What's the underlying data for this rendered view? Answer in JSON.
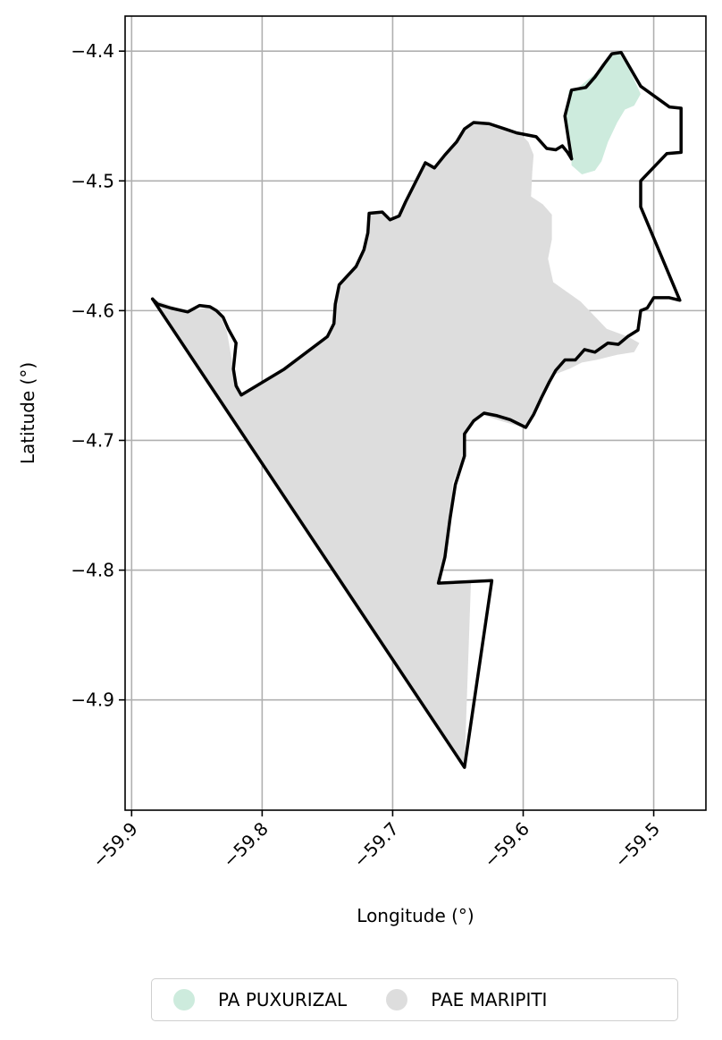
{
  "map": {
    "xlabel": "Longitude (°)",
    "ylabel": "Latitude (°)",
    "xlim": [
      -59.905,
      -59.46
    ],
    "ylim": [
      -4.985,
      -4.373
    ],
    "x_ticks": [
      -59.9,
      -59.8,
      -59.7,
      -59.6,
      -59.5
    ],
    "y_ticks": [
      -4.4,
      -4.5,
      -4.6,
      -4.7,
      -4.8,
      -4.9
    ],
    "x_tick_labels": [
      "−59.9",
      "−59.8",
      "−59.7",
      "−59.6",
      "−59.5"
    ],
    "y_tick_labels": [
      "−4.4",
      "−4.5",
      "−4.6",
      "−4.7",
      "−4.8",
      "−4.9"
    ],
    "grid": true,
    "legend_position": "bottom-center",
    "boundary_color": "#000000"
  },
  "legend": [
    {
      "label": "PA PUXURIZAL",
      "color": "#cdebdd"
    },
    {
      "label": "PAE MARIPITI",
      "color": "#dddddd"
    }
  ],
  "regions": [
    {
      "name": "PAE MARIPITI",
      "color": "#dddddd",
      "coords": [
        [
          -59.884,
          -4.591
        ],
        [
          -59.857,
          -4.601
        ],
        [
          -59.84,
          -4.597
        ],
        [
          -59.832,
          -4.604
        ],
        [
          -59.827,
          -4.616
        ],
        [
          -59.822,
          -4.645
        ],
        [
          -59.816,
          -4.665
        ],
        [
          -59.783,
          -4.645
        ],
        [
          -59.75,
          -4.62
        ],
        [
          -59.745,
          -4.61
        ],
        [
          -59.744,
          -4.595
        ],
        [
          -59.741,
          -4.58
        ],
        [
          -59.728,
          -4.566
        ],
        [
          -59.722,
          -4.553
        ],
        [
          -59.719,
          -4.54
        ],
        [
          -59.718,
          -4.525
        ],
        [
          -59.708,
          -4.524
        ],
        [
          -59.702,
          -4.53
        ],
        [
          -59.695,
          -4.527
        ],
        [
          -59.69,
          -4.516
        ],
        [
          -59.675,
          -4.486
        ],
        [
          -59.668,
          -4.49
        ],
        [
          -59.66,
          -4.48
        ],
        [
          -59.651,
          -4.47
        ],
        [
          -59.645,
          -4.46
        ],
        [
          -59.638,
          -4.455
        ],
        [
          -59.626,
          -4.456
        ],
        [
          -59.614,
          -4.46
        ],
        [
          -59.6,
          -4.466
        ],
        [
          -59.596,
          -4.47
        ],
        [
          -59.592,
          -4.48
        ],
        [
          -59.593,
          -4.493
        ],
        [
          -59.594,
          -4.512
        ],
        [
          -59.585,
          -4.518
        ],
        [
          -59.578,
          -4.526
        ],
        [
          -59.578,
          -4.545
        ],
        [
          -59.581,
          -4.56
        ],
        [
          -59.577,
          -4.578
        ],
        [
          -59.556,
          -4.593
        ],
        [
          -59.536,
          -4.614
        ],
        [
          -59.52,
          -4.62
        ],
        [
          -59.511,
          -4.625
        ],
        [
          -59.515,
          -4.632
        ],
        [
          -59.528,
          -4.634
        ],
        [
          -59.544,
          -4.638
        ],
        [
          -59.555,
          -4.64
        ],
        [
          -59.565,
          -4.645
        ],
        [
          -59.578,
          -4.65
        ],
        [
          -59.585,
          -4.663
        ],
        [
          -59.592,
          -4.68
        ],
        [
          -59.6,
          -4.69
        ],
        [
          -59.617,
          -4.685
        ],
        [
          -59.632,
          -4.68
        ],
        [
          -59.643,
          -4.692
        ],
        [
          -59.645,
          -4.71
        ],
        [
          -59.654,
          -4.733
        ],
        [
          -59.655,
          -4.758
        ],
        [
          -59.66,
          -4.79
        ],
        [
          -59.665,
          -4.81
        ],
        [
          -59.64,
          -4.808
        ],
        [
          -59.645,
          -4.952
        ],
        [
          -59.884,
          -4.591
        ]
      ]
    },
    {
      "name": "PA PUXURIZAL",
      "color": "#cdebdd",
      "coords": [
        [
          -59.563,
          -4.474
        ],
        [
          -59.567,
          -4.45
        ],
        [
          -59.565,
          -4.43
        ],
        [
          -59.56,
          -4.43
        ],
        [
          -59.542,
          -4.415
        ],
        [
          -59.535,
          -4.405
        ],
        [
          -59.527,
          -4.401
        ],
        [
          -59.52,
          -4.412
        ],
        [
          -59.515,
          -4.422
        ],
        [
          -59.51,
          -4.433
        ],
        [
          -59.515,
          -4.442
        ],
        [
          -59.522,
          -4.445
        ],
        [
          -59.528,
          -4.455
        ],
        [
          -59.535,
          -4.47
        ],
        [
          -59.54,
          -4.485
        ],
        [
          -59.545,
          -4.492
        ],
        [
          -59.555,
          -4.495
        ],
        [
          -59.563,
          -4.488
        ],
        [
          -59.563,
          -4.474
        ]
      ]
    }
  ],
  "boundaries": [
    {
      "name": "maripiti-outline",
      "coords": [
        [
          -59.884,
          -4.591
        ],
        [
          -59.88,
          -4.595
        ],
        [
          -59.87,
          -4.598
        ],
        [
          -59.857,
          -4.601
        ],
        [
          -59.848,
          -4.596
        ],
        [
          -59.84,
          -4.597
        ],
        [
          -59.835,
          -4.6
        ],
        [
          -59.83,
          -4.605
        ],
        [
          -59.826,
          -4.614
        ],
        [
          -59.82,
          -4.625
        ],
        [
          -59.822,
          -4.645
        ],
        [
          -59.82,
          -4.658
        ],
        [
          -59.816,
          -4.665
        ],
        [
          -59.783,
          -4.645
        ],
        [
          -59.75,
          -4.62
        ],
        [
          -59.745,
          -4.61
        ],
        [
          -59.744,
          -4.595
        ],
        [
          -59.741,
          -4.58
        ],
        [
          -59.728,
          -4.566
        ],
        [
          -59.722,
          -4.553
        ],
        [
          -59.719,
          -4.54
        ],
        [
          -59.718,
          -4.525
        ],
        [
          -59.708,
          -4.524
        ],
        [
          -59.702,
          -4.53
        ],
        [
          -59.695,
          -4.527
        ],
        [
          -59.69,
          -4.516
        ],
        [
          -59.675,
          -4.486
        ],
        [
          -59.668,
          -4.49
        ],
        [
          -59.66,
          -4.48
        ],
        [
          -59.651,
          -4.47
        ],
        [
          -59.645,
          -4.46
        ],
        [
          -59.638,
          -4.455
        ],
        [
          -59.626,
          -4.456
        ],
        [
          -59.614,
          -4.46
        ],
        [
          -59.605,
          -4.463
        ],
        [
          -59.59,
          -4.466
        ],
        [
          -59.582,
          -4.475
        ],
        [
          -59.575,
          -4.476
        ],
        [
          -59.57,
          -4.473
        ],
        [
          -59.566,
          -4.478
        ],
        [
          -59.563,
          -4.483
        ]
      ]
    },
    {
      "name": "puxurizal-outline",
      "coords": [
        [
          -59.563,
          -4.483
        ],
        [
          -59.568,
          -4.45
        ],
        [
          -59.563,
          -4.43
        ],
        [
          -59.552,
          -4.428
        ],
        [
          -59.545,
          -4.42
        ],
        [
          -59.538,
          -4.41
        ],
        [
          -59.532,
          -4.402
        ],
        [
          -59.525,
          -4.401
        ],
        [
          -59.51,
          -4.427
        ],
        [
          -59.488,
          -4.443
        ],
        [
          -59.479,
          -4.444
        ],
        [
          -59.479,
          -4.478
        ],
        [
          -59.49,
          -4.479
        ],
        [
          -59.51,
          -4.5
        ],
        [
          -59.51,
          -4.52
        ],
        [
          -59.48,
          -4.592
        ],
        [
          -59.488,
          -4.59
        ],
        [
          -59.5,
          -4.59
        ],
        [
          -59.505,
          -4.598
        ],
        [
          -59.51,
          -4.6
        ],
        [
          -59.512,
          -4.615
        ],
        [
          -59.52,
          -4.62
        ],
        [
          -59.527,
          -4.626
        ],
        [
          -59.535,
          -4.625
        ],
        [
          -59.545,
          -4.632
        ],
        [
          -59.553,
          -4.63
        ],
        [
          -59.56,
          -4.638
        ],
        [
          -59.568,
          -4.638
        ],
        [
          -59.575,
          -4.646
        ],
        [
          -59.58,
          -4.655
        ],
        [
          -59.586,
          -4.667
        ],
        [
          -59.592,
          -4.68
        ],
        [
          -59.598,
          -4.69
        ],
        [
          -59.61,
          -4.684
        ],
        [
          -59.62,
          -4.681
        ],
        [
          -59.63,
          -4.679
        ],
        [
          -59.638,
          -4.685
        ],
        [
          -59.645,
          -4.695
        ],
        [
          -59.645,
          -4.712
        ],
        [
          -59.652,
          -4.734
        ],
        [
          -59.656,
          -4.76
        ],
        [
          -59.66,
          -4.79
        ],
        [
          -59.665,
          -4.81
        ],
        [
          -59.624,
          -4.808
        ],
        [
          -59.645,
          -4.952
        ],
        [
          -59.884,
          -4.591
        ]
      ]
    }
  ]
}
